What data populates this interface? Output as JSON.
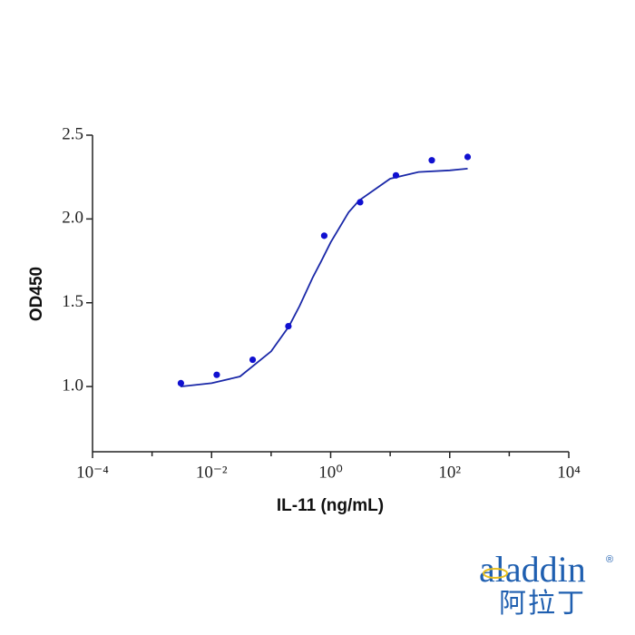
{
  "chart_data": {
    "type": "scatter",
    "xlabel": "IL-11 (ng/mL)",
    "ylabel": "OD450",
    "xscale": "log",
    "xlim": [
      0.0001,
      10000
    ],
    "xticks": [
      {
        "value": 0.0001,
        "label": "10⁻⁴"
      },
      {
        "value": 0.01,
        "label": "10⁻²"
      },
      {
        "value": 1,
        "label": "10⁰"
      },
      {
        "value": 100,
        "label": "10²"
      },
      {
        "value": 10000,
        "label": "10⁴"
      }
    ],
    "xminorticks": [
      0.001,
      0.1,
      10,
      1000
    ],
    "ylim": [
      0.6,
      2.5
    ],
    "yticks": [
      {
        "value": 1,
        "label": "1.0"
      },
      1.5,
      {
        "value": 2,
        "label": "2.0"
      },
      2.5
    ],
    "series": [
      {
        "type": "scatter",
        "color": "#1010d0",
        "x": [
          0.00305,
          0.0122,
          0.049,
          0.195,
          0.78,
          3.125,
          12.5,
          50,
          200
        ],
        "values": [
          1.02,
          1.07,
          1.16,
          1.36,
          1.9,
          2.1,
          2.26,
          2.35,
          2.37
        ]
      },
      {
        "type": "line",
        "color": "#1a28a8",
        "x": [
          0.003,
          0.01,
          0.03,
          0.1,
          0.2,
          0.3,
          0.5,
          0.7,
          1,
          2,
          3,
          10,
          30,
          100,
          200
        ],
        "values": [
          1.0,
          1.02,
          1.06,
          1.21,
          1.36,
          1.48,
          1.65,
          1.75,
          1.86,
          2.04,
          2.11,
          2.24,
          2.28,
          2.29,
          2.3
        ]
      }
    ]
  },
  "logo": {
    "name": "aladdin",
    "chinese": "阿拉丁",
    "mark": "®"
  }
}
